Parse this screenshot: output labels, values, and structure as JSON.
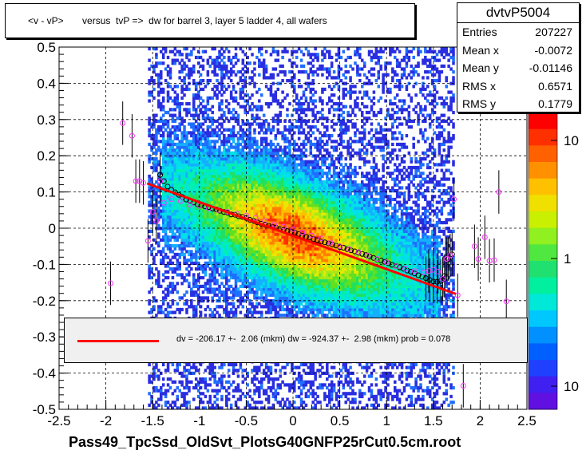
{
  "chart_data": {
    "type": "scatter",
    "title": "<v - vP>       versus  tvP =>  dw for barrel 3, layer 5 ladder 4, all wafers",
    "xlabel": "Pass49_TpcSsd_OldSvt_PlotsG40GNFP25rCut0.5cm.root",
    "ylabel": "",
    "xlim": [
      -2.5,
      2.5
    ],
    "ylim": [
      -0.5,
      0.5
    ],
    "x_ticks": [
      "-2.5",
      "-2",
      "-1.5",
      "-1",
      "-0.5",
      "0",
      "0.5",
      "1",
      "1.5",
      "2",
      "2.5"
    ],
    "y_ticks": [
      "-0.5",
      "-0.4",
      "-0.3",
      "-0.2",
      "-0.1",
      "0",
      "0.1",
      "0.2",
      "0.3",
      "0.4",
      "0.5"
    ],
    "colorbar_ticks": [
      "10",
      "1",
      "10"
    ],
    "grid": true,
    "stats": {
      "name": "dvtvP5004",
      "entries": [
        "Entries",
        "207227"
      ],
      "mean_x": [
        "Mean x",
        "-0.0072"
      ],
      "mean_y": [
        "Mean y",
        "-0.01146"
      ],
      "rms_x": [
        "RMS x",
        "0.6571"
      ],
      "rms_y": [
        "RMS y",
        "0.1779"
      ]
    },
    "fit": {
      "x_range": [
        -1.56,
        1.74
      ],
      "slope": -0.09244,
      "intercept": -0.0206,
      "label": "dv = -206.17 +-  2.06 (mkm) dw = -924.37 +-  2.98 (mkm) prob = 0.078"
    },
    "profile_black": {
      "x": [
        -1.42,
        -1.38,
        -1.34,
        -1.3,
        -1.26,
        -1.22,
        -1.18,
        -1.14,
        -1.1,
        -1.06,
        -1.02,
        -0.98,
        -0.94,
        -0.9,
        -0.86,
        -0.82,
        -0.78,
        -0.74,
        -0.7,
        -0.66,
        -0.62,
        -0.58,
        -0.54,
        -0.5,
        -0.46,
        -0.42,
        -0.38,
        -0.34,
        -0.3,
        -0.26,
        -0.22,
        -0.18,
        -0.14,
        -0.1,
        -0.06,
        -0.02,
        0.02,
        0.06,
        0.1,
        0.14,
        0.18,
        0.22,
        0.26,
        0.3,
        0.34,
        0.38,
        0.42,
        0.46,
        0.5,
        0.54,
        0.58,
        0.62,
        0.66,
        0.7,
        0.74,
        0.78,
        0.82,
        0.86,
        0.9,
        0.94,
        0.98,
        1.02,
        1.06,
        1.1,
        1.14,
        1.18,
        1.22,
        1.26,
        1.3,
        1.34,
        1.38,
        1.42,
        1.46,
        1.5,
        1.54,
        1.58,
        1.62,
        1.66,
        1.7
      ],
      "y": [
        0.147,
        0.13,
        0.115,
        0.106,
        0.099,
        0.092,
        0.086,
        0.079,
        0.076,
        0.071,
        0.066,
        0.064,
        0.06,
        0.058,
        0.054,
        0.052,
        0.048,
        0.045,
        0.043,
        0.038,
        0.037,
        0.033,
        0.031,
        0.028,
        0.023,
        0.02,
        0.016,
        0.012,
        0.01,
        0.007,
        0.004,
        0.001,
        -0.002,
        -0.005,
        -0.008,
        -0.01,
        -0.012,
        -0.016,
        -0.021,
        -0.024,
        -0.026,
        -0.03,
        -0.033,
        -0.037,
        -0.039,
        -0.042,
        -0.045,
        -0.048,
        -0.052,
        -0.054,
        -0.058,
        -0.061,
        -0.064,
        -0.068,
        -0.071,
        -0.074,
        -0.078,
        -0.082,
        -0.086,
        -0.089,
        -0.093,
        -0.097,
        -0.101,
        -0.104,
        -0.108,
        -0.112,
        -0.117,
        -0.12,
        -0.125,
        -0.13,
        -0.134,
        -0.138,
        -0.143,
        -0.147,
        -0.148,
        -0.146,
        -0.132,
        -0.085,
        -0.072
      ]
    },
    "profile_magenta": {
      "x": [
        -1.95,
        -1.82,
        -1.72,
        -1.68,
        -1.64,
        -1.6,
        -1.55,
        -1.5,
        -1.46,
        -1.42,
        -1.38,
        -1.3,
        -1.2,
        -1.1,
        -1.0,
        -0.9,
        -0.8,
        -0.7,
        -0.6,
        -0.5,
        -0.4,
        -0.3,
        -0.2,
        -0.1,
        0.0,
        0.1,
        0.2,
        0.3,
        0.4,
        0.5,
        0.6,
        0.7,
        0.8,
        0.9,
        1.0,
        1.1,
        1.2,
        1.3,
        1.4,
        1.45,
        1.5,
        1.55,
        1.6,
        1.64,
        1.68,
        1.72,
        1.76,
        1.82,
        1.94,
        1.98,
        2.05,
        2.1,
        2.15,
        2.2,
        2.28
      ],
      "y": [
        -0.152,
        0.29,
        0.255,
        0.13,
        0.13,
        0.125,
        -0.035,
        0.045,
        0.02,
        0.13,
        0.07,
        0.08,
        0.075,
        0.065,
        0.062,
        0.055,
        0.05,
        0.045,
        0.04,
        0.035,
        0.028,
        0.02,
        0.01,
        0.004,
        -0.003,
        -0.012,
        -0.02,
        -0.028,
        -0.04,
        -0.05,
        -0.058,
        -0.066,
        -0.076,
        -0.085,
        -0.094,
        -0.105,
        -0.112,
        -0.118,
        -0.122,
        -0.118,
        -0.115,
        -0.12,
        -0.14,
        -0.085,
        -0.075,
        0.08,
        -0.185,
        -0.435,
        -0.05,
        -0.085,
        -0.025,
        -0.09,
        -0.088,
        0.1,
        -0.202
      ]
    }
  }
}
